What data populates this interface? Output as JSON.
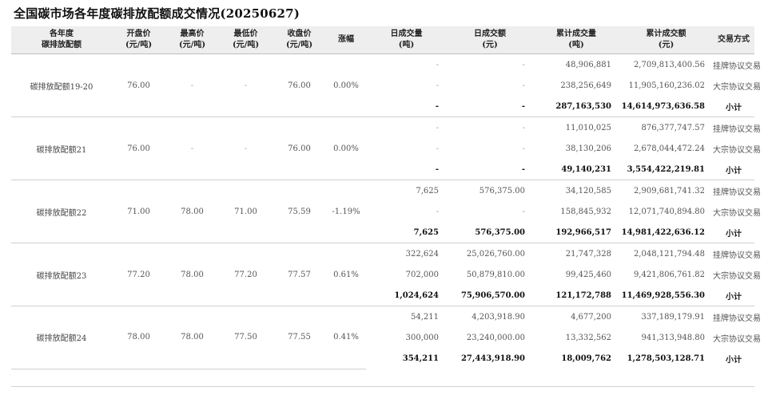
{
  "title": "全国碳市场各年度碳排放配额成交情况(20250627)",
  "headers": {
    "name_l1": "各年度",
    "name_l2": "碳排放配额",
    "open_l1": "开盘价",
    "open_l2": "(元/吨)",
    "high_l1": "最高价",
    "high_l2": "(元/吨)",
    "low_l1": "最低价",
    "low_l2": "(元/吨)",
    "close_l1": "收盘价",
    "close_l2": "(元/吨)",
    "change": "涨幅",
    "dvol_l1": "日成交量",
    "dvol_l2": "(吨)",
    "damt_l1": "日成交额",
    "damt_l2": "(元)",
    "cvol_l1": "累计成交量",
    "cvol_l2": "(吨)",
    "camt_l1": "累计成交额",
    "camt_l2": "(元)",
    "mode": "交易方式"
  },
  "groups": [
    {
      "name": "碳排放配额19-20",
      "open": "76.00",
      "high": "-",
      "low": "-",
      "close": "76.00",
      "change": "0.00%",
      "rows": [
        {
          "dvol": "-",
          "damt": "-",
          "cvol": "48,906,881",
          "camt": "2,709,813,400.56",
          "mode": "挂牌协议交易"
        },
        {
          "dvol": "-",
          "damt": "-",
          "cvol": "238,256,649",
          "camt": "11,905,160,236.02",
          "mode": "大宗协议交易"
        },
        {
          "dvol": "-",
          "damt": "-",
          "cvol": "287,163,530",
          "camt": "14,614,973,636.58",
          "mode": "小计"
        }
      ]
    },
    {
      "name": "碳排放配额21",
      "open": "76.00",
      "high": "-",
      "low": "-",
      "close": "76.00",
      "change": "0.00%",
      "rows": [
        {
          "dvol": "-",
          "damt": "-",
          "cvol": "11,010,025",
          "camt": "876,377,747.57",
          "mode": "挂牌协议交易"
        },
        {
          "dvol": "-",
          "damt": "-",
          "cvol": "38,130,206",
          "camt": "2,678,044,472.24",
          "mode": "大宗协议交易"
        },
        {
          "dvol": "-",
          "damt": "-",
          "cvol": "49,140,231",
          "camt": "3,554,422,219.81",
          "mode": "小计"
        }
      ]
    },
    {
      "name": "碳排放配额22",
      "open": "71.00",
      "high": "78.00",
      "low": "71.00",
      "close": "75.59",
      "change": "-1.19%",
      "rows": [
        {
          "dvol": "7,625",
          "damt": "576,375.00",
          "cvol": "34,120,585",
          "camt": "2,909,681,741.32",
          "mode": "挂牌协议交易"
        },
        {
          "dvol": "-",
          "damt": "-",
          "cvol": "158,845,932",
          "camt": "12,071,740,894.80",
          "mode": "大宗协议交易"
        },
        {
          "dvol": "7,625",
          "damt": "576,375.00",
          "cvol": "192,966,517",
          "camt": "14,981,422,636.12",
          "mode": "小计"
        }
      ]
    },
    {
      "name": "碳排放配额23",
      "open": "77.20",
      "high": "78.00",
      "low": "77.20",
      "close": "77.57",
      "change": "0.61%",
      "rows": [
        {
          "dvol": "322,624",
          "damt": "25,026,760.00",
          "cvol": "21,747,328",
          "camt": "2,048,121,794.48",
          "mode": "挂牌协议交易"
        },
        {
          "dvol": "702,000",
          "damt": "50,879,810.00",
          "cvol": "99,425,460",
          "camt": "9,421,806,761.82",
          "mode": "大宗协议交易"
        },
        {
          "dvol": "1,024,624",
          "damt": "75,906,570.00",
          "cvol": "121,172,788",
          "camt": "11,469,928,556.30",
          "mode": "小计"
        }
      ]
    },
    {
      "name": "碳排放配额24",
      "open": "78.00",
      "high": "78.00",
      "low": "77.50",
      "close": "77.55",
      "change": "0.41%",
      "rows": [
        {
          "dvol": "54,211",
          "damt": "4,203,918.90",
          "cvol": "4,677,200",
          "camt": "337,189,179.91",
          "mode": "挂牌协议交易"
        },
        {
          "dvol": "300,000",
          "damt": "23,240,000.00",
          "cvol": "13,332,562",
          "camt": "941,313,948.80",
          "mode": "大宗协议交易"
        },
        {
          "dvol": "354,211",
          "damt": "27,443,918.90",
          "cvol": "18,009,762",
          "camt": "1,278,503,128.71",
          "mode": "小计"
        }
      ]
    }
  ]
}
